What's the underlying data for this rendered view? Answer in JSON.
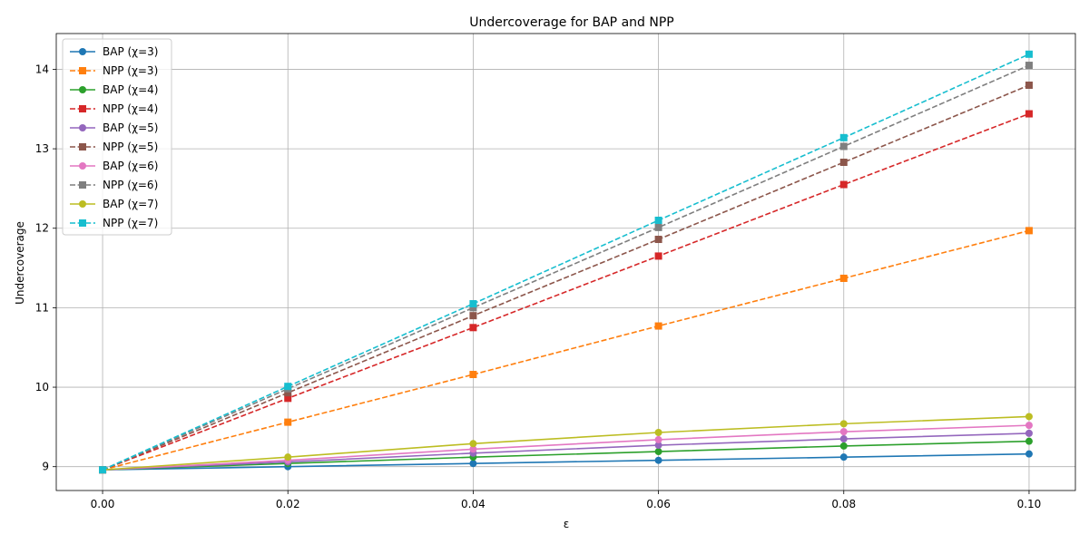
{
  "chart_data": {
    "type": "line",
    "title": "Undercoverage for BAP and NPP",
    "xlabel": "ε",
    "ylabel": "Undercoverage",
    "x": [
      0.0,
      0.02,
      0.04,
      0.06,
      0.08,
      0.1
    ],
    "x_tick_labels": [
      "0.00",
      "0.02",
      "0.04",
      "0.06",
      "0.08",
      "0.10"
    ],
    "y_ticks": [
      9,
      10,
      11,
      12,
      13,
      14
    ],
    "y_tick_labels": [
      "9",
      "10",
      "11",
      "12",
      "13",
      "14"
    ],
    "xlim": [
      -0.005,
      0.105
    ],
    "ylim": [
      8.7,
      14.45
    ],
    "grid": true,
    "legend_position": "top-left",
    "series": [
      {
        "name": "BAP (χ=3)",
        "color": "#1f77b4",
        "linestyle": "solid",
        "marker": "circle",
        "values": [
          8.96,
          9.0,
          9.04,
          9.08,
          9.12,
          9.16
        ]
      },
      {
        "name": "NPP (χ=3)",
        "color": "#ff7f0e",
        "linestyle": "dashed",
        "marker": "square",
        "values": [
          8.96,
          9.56,
          10.16,
          10.77,
          11.37,
          11.97
        ]
      },
      {
        "name": "BAP (χ=4)",
        "color": "#2ca02c",
        "linestyle": "solid",
        "marker": "circle",
        "values": [
          8.96,
          9.04,
          9.12,
          9.19,
          9.26,
          9.32
        ]
      },
      {
        "name": "NPP (χ=4)",
        "color": "#d62728",
        "linestyle": "dashed",
        "marker": "square",
        "values": [
          8.96,
          9.86,
          10.75,
          11.65,
          12.55,
          13.44
        ]
      },
      {
        "name": "BAP (χ=5)",
        "color": "#9467bd",
        "linestyle": "solid",
        "marker": "circle",
        "values": [
          8.96,
          9.06,
          9.17,
          9.27,
          9.35,
          9.42
        ]
      },
      {
        "name": "NPP (χ=5)",
        "color": "#8c564b",
        "linestyle": "dashed",
        "marker": "square",
        "values": [
          8.96,
          9.93,
          10.9,
          11.86,
          12.83,
          13.8
        ]
      },
      {
        "name": "BAP (χ=6)",
        "color": "#e377c2",
        "linestyle": "solid",
        "marker": "circle",
        "values": [
          8.96,
          9.08,
          9.22,
          9.34,
          9.44,
          9.52
        ]
      },
      {
        "name": "NPP (χ=6)",
        "color": "#7f7f7f",
        "linestyle": "dashed",
        "marker": "square",
        "values": [
          8.96,
          9.98,
          11.0,
          12.01,
          13.03,
          14.05
        ]
      },
      {
        "name": "BAP (χ=7)",
        "color": "#bcbd22",
        "linestyle": "solid",
        "marker": "circle",
        "values": [
          8.96,
          9.12,
          9.29,
          9.43,
          9.54,
          9.63
        ]
      },
      {
        "name": "NPP (χ=7)",
        "color": "#17becf",
        "linestyle": "dashed",
        "marker": "square",
        "values": [
          8.96,
          10.01,
          11.05,
          12.1,
          13.14,
          14.19
        ]
      }
    ]
  }
}
